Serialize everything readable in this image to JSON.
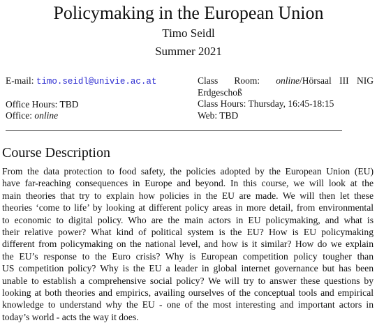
{
  "header": {
    "title": "Policymaking in the European Union",
    "author": "Timo Seidl",
    "term": "Summer 2021"
  },
  "contact": {
    "email_label": "E-mail:",
    "email": "timo.seidl@univie.ac.at",
    "office_hours_label": "Office Hours:",
    "office_hours": "TBD",
    "office_label": "Office:",
    "office": "online",
    "class_room_label": "Class",
    "class_room_label2": "Room:",
    "class_room_online": "online",
    "class_room_rest": "/Hörsaal III NIG",
    "class_room_line2": "Erdgeschoß",
    "class_hours_label": "Class Hours:",
    "class_hours": "Thursday, 16:45-18:15",
    "web_label": "Web:",
    "web": "TBD"
  },
  "course_description": {
    "heading": "Course Description",
    "lines": [
      "From the data protection to food safety, the policies adopted by the European Union (EU)",
      "have far-reaching consequences in Europe and beyond. In this course, we will look at the",
      "main theories that try to explain how policies in the EU are made. We will then let these",
      "theories ‘come to life’ by looking at different policy areas in more detail, from environmental",
      "to economic to digital policy. Who are the main actors in EU policymaking, and what is",
      "their relative power? What kind of political system is the EU? How is EU policymaking",
      "different from policymaking on the national level, and how is it similar? How do we explain",
      "the EU’s response to the Euro crisis? Why is European competition policy tougher than",
      "US competition policy? Why is the EU a leader in global internet governance but has been",
      "unable to establish a comprehensive social policy? We will try to answer these questions by",
      "looking at both theories and empirics, availing ourselves of the conceptual tools and empirical",
      "knowledge to understand why the EU - one of the most interesting and important actors in",
      "today’s world - acts the way it does."
    ]
  }
}
